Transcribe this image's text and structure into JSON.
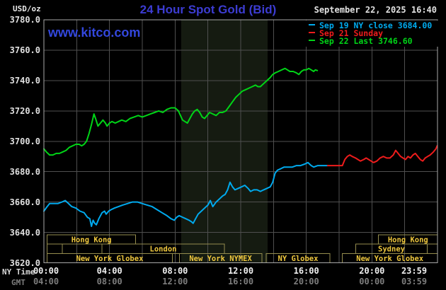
{
  "header": {
    "unit_label": "USD/oz",
    "title": "24 Hour Spot Gold (Bid)",
    "datetime": "September 22, 2025 16:40",
    "watermark": "www.kitco.com"
  },
  "legend": {
    "items": [
      {
        "id": "sep19",
        "label": "Sep 19 NY close 3684.00",
        "color": "#00aaee"
      },
      {
        "id": "sep21",
        "label": "Sep 21 Sunday",
        "color": "#ee1c1c"
      },
      {
        "id": "sep22",
        "label": "Sep 22 Last 3746.60",
        "color": "#00d517"
      }
    ]
  },
  "axis": {
    "ny_time_label": "NY Time",
    "gmt_label": "GMT",
    "x_ticks": [
      {
        "hour": 0,
        "ny": "00:00",
        "gmt": "04:00"
      },
      {
        "hour": 4,
        "ny": "04:00",
        "gmt": "08:00"
      },
      {
        "hour": 8,
        "ny": "08:00",
        "gmt": "12:00"
      },
      {
        "hour": 12,
        "ny": "12:00",
        "gmt": "16:00"
      },
      {
        "hour": 16,
        "ny": "16:00",
        "gmt": "20:00"
      },
      {
        "hour": 20,
        "ny": "20:00",
        "gmt": "00:00"
      },
      {
        "hour": 23.983,
        "ny": "23:59",
        "gmt": "03:59"
      }
    ]
  },
  "colors": {
    "background": "#000000",
    "grid": "#4f4f4f",
    "plot_border": "#a8a8a8",
    "band": "#151b11",
    "session_border": "#958d4e",
    "session_label": "#eec73e",
    "tick_ny": "#f0f0f0",
    "tick_gmt": "#7d7d7d",
    "title_blue": "#3c3cd2",
    "cyan_line": "#00aaee",
    "red_line": "#ee1c1c",
    "green_line": "#00d517"
  },
  "sessions": [
    {
      "row": 1,
      "start": 0.2,
      "end": 5.6,
      "label": "Hong Kong"
    },
    {
      "row": 1,
      "start": 20.4,
      "end": 24,
      "label": "Hong Kong"
    },
    {
      "row": 2,
      "start": 0.2,
      "end": 1.12,
      "label": ""
    },
    {
      "row": 2,
      "start": 1.12,
      "end": 3.55,
      "label": ""
    },
    {
      "row": 2,
      "start": 3.55,
      "end": 11.0,
      "label": "London"
    },
    {
      "row": 2,
      "start": 19.02,
      "end": 23.37,
      "label": "Sydney"
    },
    {
      "row": 3,
      "start": 0.2,
      "end": 7.83,
      "label": "New York Globex"
    },
    {
      "row": 3,
      "start": 8.26,
      "end": 13.29,
      "label": "New York NYMEX"
    },
    {
      "row": 3,
      "start": 13.55,
      "end": 17.44,
      "label": "NY Globex"
    },
    {
      "row": 3,
      "start": 18.19,
      "end": 24,
      "label": "New York Globex"
    }
  ],
  "chart_data": {
    "type": "line",
    "title": "24 Hour Spot Gold (Bid)",
    "xlabel": "NY Time (hours)",
    "ylabel": "USD/oz",
    "xlim": [
      0,
      24
    ],
    "ylim": [
      3620,
      3780
    ],
    "y_tick_step": 20,
    "x_grid_step": 2,
    "grid": true,
    "legend_position": "top-right",
    "highlight_band_hours": [
      8.37,
      13.64
    ],
    "prev_ny_close": 3684.0,
    "last": 3746.6,
    "series": [
      {
        "id": "sep19",
        "name": "Sep 19 NY close",
        "color": "#00aaee",
        "points": [
          [
            0,
            3654
          ],
          [
            0.2,
            3657
          ],
          [
            0.35,
            3659
          ],
          [
            0.6,
            3659
          ],
          [
            0.85,
            3659
          ],
          [
            1.1,
            3660
          ],
          [
            1.3,
            3661
          ],
          [
            1.5,
            3659
          ],
          [
            1.7,
            3657
          ],
          [
            1.95,
            3656
          ],
          [
            2.2,
            3654
          ],
          [
            2.45,
            3653
          ],
          [
            2.65,
            3650
          ],
          [
            2.8,
            3649
          ],
          [
            2.9,
            3644
          ],
          [
            3.0,
            3648
          ],
          [
            3.1,
            3646
          ],
          [
            3.2,
            3645
          ],
          [
            3.35,
            3649
          ],
          [
            3.55,
            3653
          ],
          [
            3.7,
            3654
          ],
          [
            3.8,
            3652
          ],
          [
            3.95,
            3654
          ],
          [
            4.1,
            3655
          ],
          [
            4.3,
            3656
          ],
          [
            4.55,
            3657
          ],
          [
            4.8,
            3658
          ],
          [
            5.1,
            3659
          ],
          [
            5.4,
            3660
          ],
          [
            5.7,
            3660
          ],
          [
            6.0,
            3659
          ],
          [
            6.3,
            3658
          ],
          [
            6.6,
            3657
          ],
          [
            6.9,
            3655
          ],
          [
            7.2,
            3653
          ],
          [
            7.5,
            3651
          ],
          [
            7.75,
            3649
          ],
          [
            7.95,
            3648
          ],
          [
            8.1,
            3650
          ],
          [
            8.25,
            3651
          ],
          [
            8.45,
            3650
          ],
          [
            8.65,
            3649
          ],
          [
            8.85,
            3648
          ],
          [
            9.0,
            3647
          ],
          [
            9.1,
            3646
          ],
          [
            9.25,
            3649
          ],
          [
            9.4,
            3652
          ],
          [
            9.6,
            3654
          ],
          [
            9.8,
            3656
          ],
          [
            10.0,
            3658
          ],
          [
            10.15,
            3661
          ],
          [
            10.3,
            3657
          ],
          [
            10.5,
            3660
          ],
          [
            10.7,
            3662
          ],
          [
            10.9,
            3664
          ],
          [
            11.05,
            3665
          ],
          [
            11.2,
            3668
          ],
          [
            11.35,
            3673
          ],
          [
            11.5,
            3670
          ],
          [
            11.65,
            3668
          ],
          [
            11.85,
            3669
          ],
          [
            12.05,
            3670
          ],
          [
            12.25,
            3671
          ],
          [
            12.45,
            3669
          ],
          [
            12.6,
            3667
          ],
          [
            12.8,
            3668
          ],
          [
            13.0,
            3668
          ],
          [
            13.2,
            3667
          ],
          [
            13.4,
            3668
          ],
          [
            13.6,
            3669
          ],
          [
            13.8,
            3670
          ],
          [
            13.95,
            3673
          ],
          [
            14.1,
            3679
          ],
          [
            14.25,
            3681
          ],
          [
            14.45,
            3682
          ],
          [
            14.65,
            3683
          ],
          [
            14.9,
            3683
          ],
          [
            15.15,
            3683
          ],
          [
            15.4,
            3684
          ],
          [
            15.65,
            3684
          ],
          [
            15.9,
            3685
          ],
          [
            16.1,
            3686
          ],
          [
            16.3,
            3684
          ],
          [
            16.45,
            3683
          ],
          [
            16.7,
            3684
          ],
          [
            16.95,
            3684
          ],
          [
            17.3,
            3684
          ]
        ]
      },
      {
        "id": "sep21",
        "name": "Sep 21 Sunday",
        "color": "#ee1c1c",
        "points": [
          [
            17.3,
            3684
          ],
          [
            17.6,
            3684
          ],
          [
            17.9,
            3684
          ],
          [
            18.2,
            3684
          ],
          [
            18.35,
            3688
          ],
          [
            18.5,
            3690
          ],
          [
            18.65,
            3691
          ],
          [
            18.8,
            3690
          ],
          [
            19.0,
            3689
          ],
          [
            19.15,
            3688
          ],
          [
            19.3,
            3687
          ],
          [
            19.5,
            3688
          ],
          [
            19.65,
            3689
          ],
          [
            19.8,
            3688
          ],
          [
            19.95,
            3687
          ],
          [
            20.1,
            3686
          ],
          [
            20.3,
            3687
          ],
          [
            20.5,
            3689
          ],
          [
            20.7,
            3690
          ],
          [
            20.9,
            3689
          ],
          [
            21.1,
            3689
          ],
          [
            21.3,
            3691
          ],
          [
            21.45,
            3694
          ],
          [
            21.6,
            3692
          ],
          [
            21.75,
            3690
          ],
          [
            21.9,
            3689
          ],
          [
            22.05,
            3688
          ],
          [
            22.2,
            3690
          ],
          [
            22.35,
            3689
          ],
          [
            22.5,
            3691
          ],
          [
            22.65,
            3692
          ],
          [
            22.8,
            3690
          ],
          [
            22.95,
            3688
          ],
          [
            23.1,
            3687
          ],
          [
            23.25,
            3689
          ],
          [
            23.4,
            3690
          ],
          [
            23.55,
            3691
          ],
          [
            23.75,
            3693
          ],
          [
            23.9,
            3695
          ],
          [
            23.98,
            3697
          ]
        ]
      },
      {
        "id": "sep22",
        "name": "Sep 22 Last",
        "color": "#00d517",
        "points": [
          [
            0,
            3695
          ],
          [
            0.15,
            3693
          ],
          [
            0.35,
            3691
          ],
          [
            0.55,
            3691
          ],
          [
            0.75,
            3692
          ],
          [
            0.95,
            3692
          ],
          [
            1.15,
            3693
          ],
          [
            1.35,
            3694
          ],
          [
            1.55,
            3696
          ],
          [
            1.75,
            3697
          ],
          [
            1.95,
            3698
          ],
          [
            2.15,
            3698
          ],
          [
            2.3,
            3697
          ],
          [
            2.45,
            3698
          ],
          [
            2.6,
            3700
          ],
          [
            2.75,
            3705
          ],
          [
            2.9,
            3711
          ],
          [
            3.05,
            3718
          ],
          [
            3.15,
            3715
          ],
          [
            3.3,
            3710
          ],
          [
            3.45,
            3712
          ],
          [
            3.6,
            3714
          ],
          [
            3.75,
            3712
          ],
          [
            3.85,
            3710
          ],
          [
            4.0,
            3712
          ],
          [
            4.15,
            3713
          ],
          [
            4.35,
            3712
          ],
          [
            4.55,
            3713
          ],
          [
            4.75,
            3714
          ],
          [
            5.0,
            3713
          ],
          [
            5.25,
            3715
          ],
          [
            5.5,
            3716
          ],
          [
            5.75,
            3717
          ],
          [
            6.0,
            3716
          ],
          [
            6.25,
            3717
          ],
          [
            6.5,
            3718
          ],
          [
            6.75,
            3719
          ],
          [
            7.0,
            3720
          ],
          [
            7.25,
            3719
          ],
          [
            7.5,
            3721
          ],
          [
            7.75,
            3722
          ],
          [
            8.0,
            3722
          ],
          [
            8.2,
            3720
          ],
          [
            8.45,
            3714
          ],
          [
            8.6,
            3713
          ],
          [
            8.75,
            3712
          ],
          [
            8.9,
            3715
          ],
          [
            9.05,
            3718
          ],
          [
            9.2,
            3720
          ],
          [
            9.35,
            3721
          ],
          [
            9.5,
            3719
          ],
          [
            9.65,
            3716
          ],
          [
            9.8,
            3715
          ],
          [
            9.95,
            3717
          ],
          [
            10.1,
            3719
          ],
          [
            10.3,
            3718
          ],
          [
            10.5,
            3717
          ],
          [
            10.7,
            3719
          ],
          [
            10.9,
            3719
          ],
          [
            11.1,
            3720
          ],
          [
            11.3,
            3723
          ],
          [
            11.5,
            3726
          ],
          [
            11.7,
            3729
          ],
          [
            11.9,
            3731
          ],
          [
            12.1,
            3733
          ],
          [
            12.3,
            3734
          ],
          [
            12.5,
            3735
          ],
          [
            12.7,
            3736
          ],
          [
            12.9,
            3737
          ],
          [
            13.05,
            3736
          ],
          [
            13.2,
            3736
          ],
          [
            13.4,
            3738
          ],
          [
            13.6,
            3740
          ],
          [
            13.8,
            3742
          ],
          [
            13.95,
            3744
          ],
          [
            14.1,
            3745
          ],
          [
            14.3,
            3746
          ],
          [
            14.5,
            3747
          ],
          [
            14.7,
            3748
          ],
          [
            14.85,
            3747
          ],
          [
            15.0,
            3746
          ],
          [
            15.2,
            3746
          ],
          [
            15.4,
            3745
          ],
          [
            15.55,
            3744
          ],
          [
            15.7,
            3746
          ],
          [
            15.85,
            3747
          ],
          [
            16.0,
            3747
          ],
          [
            16.15,
            3748
          ],
          [
            16.3,
            3747
          ],
          [
            16.45,
            3746
          ],
          [
            16.55,
            3747
          ],
          [
            16.67,
            3746.6
          ]
        ]
      }
    ]
  }
}
